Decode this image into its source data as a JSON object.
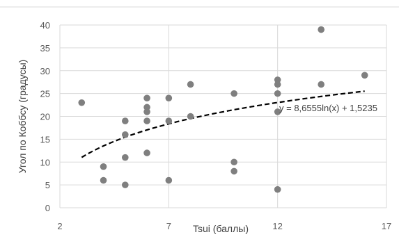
{
  "chart_data": {
    "type": "scatter",
    "xlabel": "Tsui (баллы)",
    "ylabel": "Угол по Коббсу (градусы)",
    "xlim": [
      2,
      17
    ],
    "ylim": [
      0,
      40
    ],
    "x_ticks": [
      2,
      7,
      12,
      17
    ],
    "y_ticks": [
      0,
      5,
      10,
      15,
      20,
      25,
      30,
      35,
      40
    ],
    "grid": true,
    "points": [
      {
        "x": 3,
        "y": 23
      },
      {
        "x": 4,
        "y": 9
      },
      {
        "x": 4,
        "y": 6
      },
      {
        "x": 5,
        "y": 19
      },
      {
        "x": 5,
        "y": 16
      },
      {
        "x": 5,
        "y": 11
      },
      {
        "x": 5,
        "y": 5
      },
      {
        "x": 6,
        "y": 24
      },
      {
        "x": 6,
        "y": 22
      },
      {
        "x": 6,
        "y": 21
      },
      {
        "x": 6,
        "y": 19
      },
      {
        "x": 6,
        "y": 12
      },
      {
        "x": 7,
        "y": 24
      },
      {
        "x": 7,
        "y": 19
      },
      {
        "x": 7,
        "y": 6
      },
      {
        "x": 8,
        "y": 27
      },
      {
        "x": 8,
        "y": 20
      },
      {
        "x": 10,
        "y": 25
      },
      {
        "x": 10,
        "y": 10
      },
      {
        "x": 10,
        "y": 8
      },
      {
        "x": 12,
        "y": 28
      },
      {
        "x": 12,
        "y": 27
      },
      {
        "x": 12,
        "y": 25
      },
      {
        "x": 12,
        "y": 21
      },
      {
        "x": 12,
        "y": 4
      },
      {
        "x": 14,
        "y": 39
      },
      {
        "x": 14,
        "y": 27
      },
      {
        "x": 16,
        "y": 29
      }
    ],
    "trendline": {
      "type": "logarithmic",
      "a": 8.6555,
      "b": 1.5235,
      "x_range": [
        3,
        16
      ],
      "style": "dashed"
    },
    "annotation": "y = 8,6555ln(x) + 1,5235",
    "colors": {
      "points": "#7f7f7f",
      "trendline": "#000000",
      "grid": "#d9d9d9",
      "text": "#595959"
    }
  }
}
